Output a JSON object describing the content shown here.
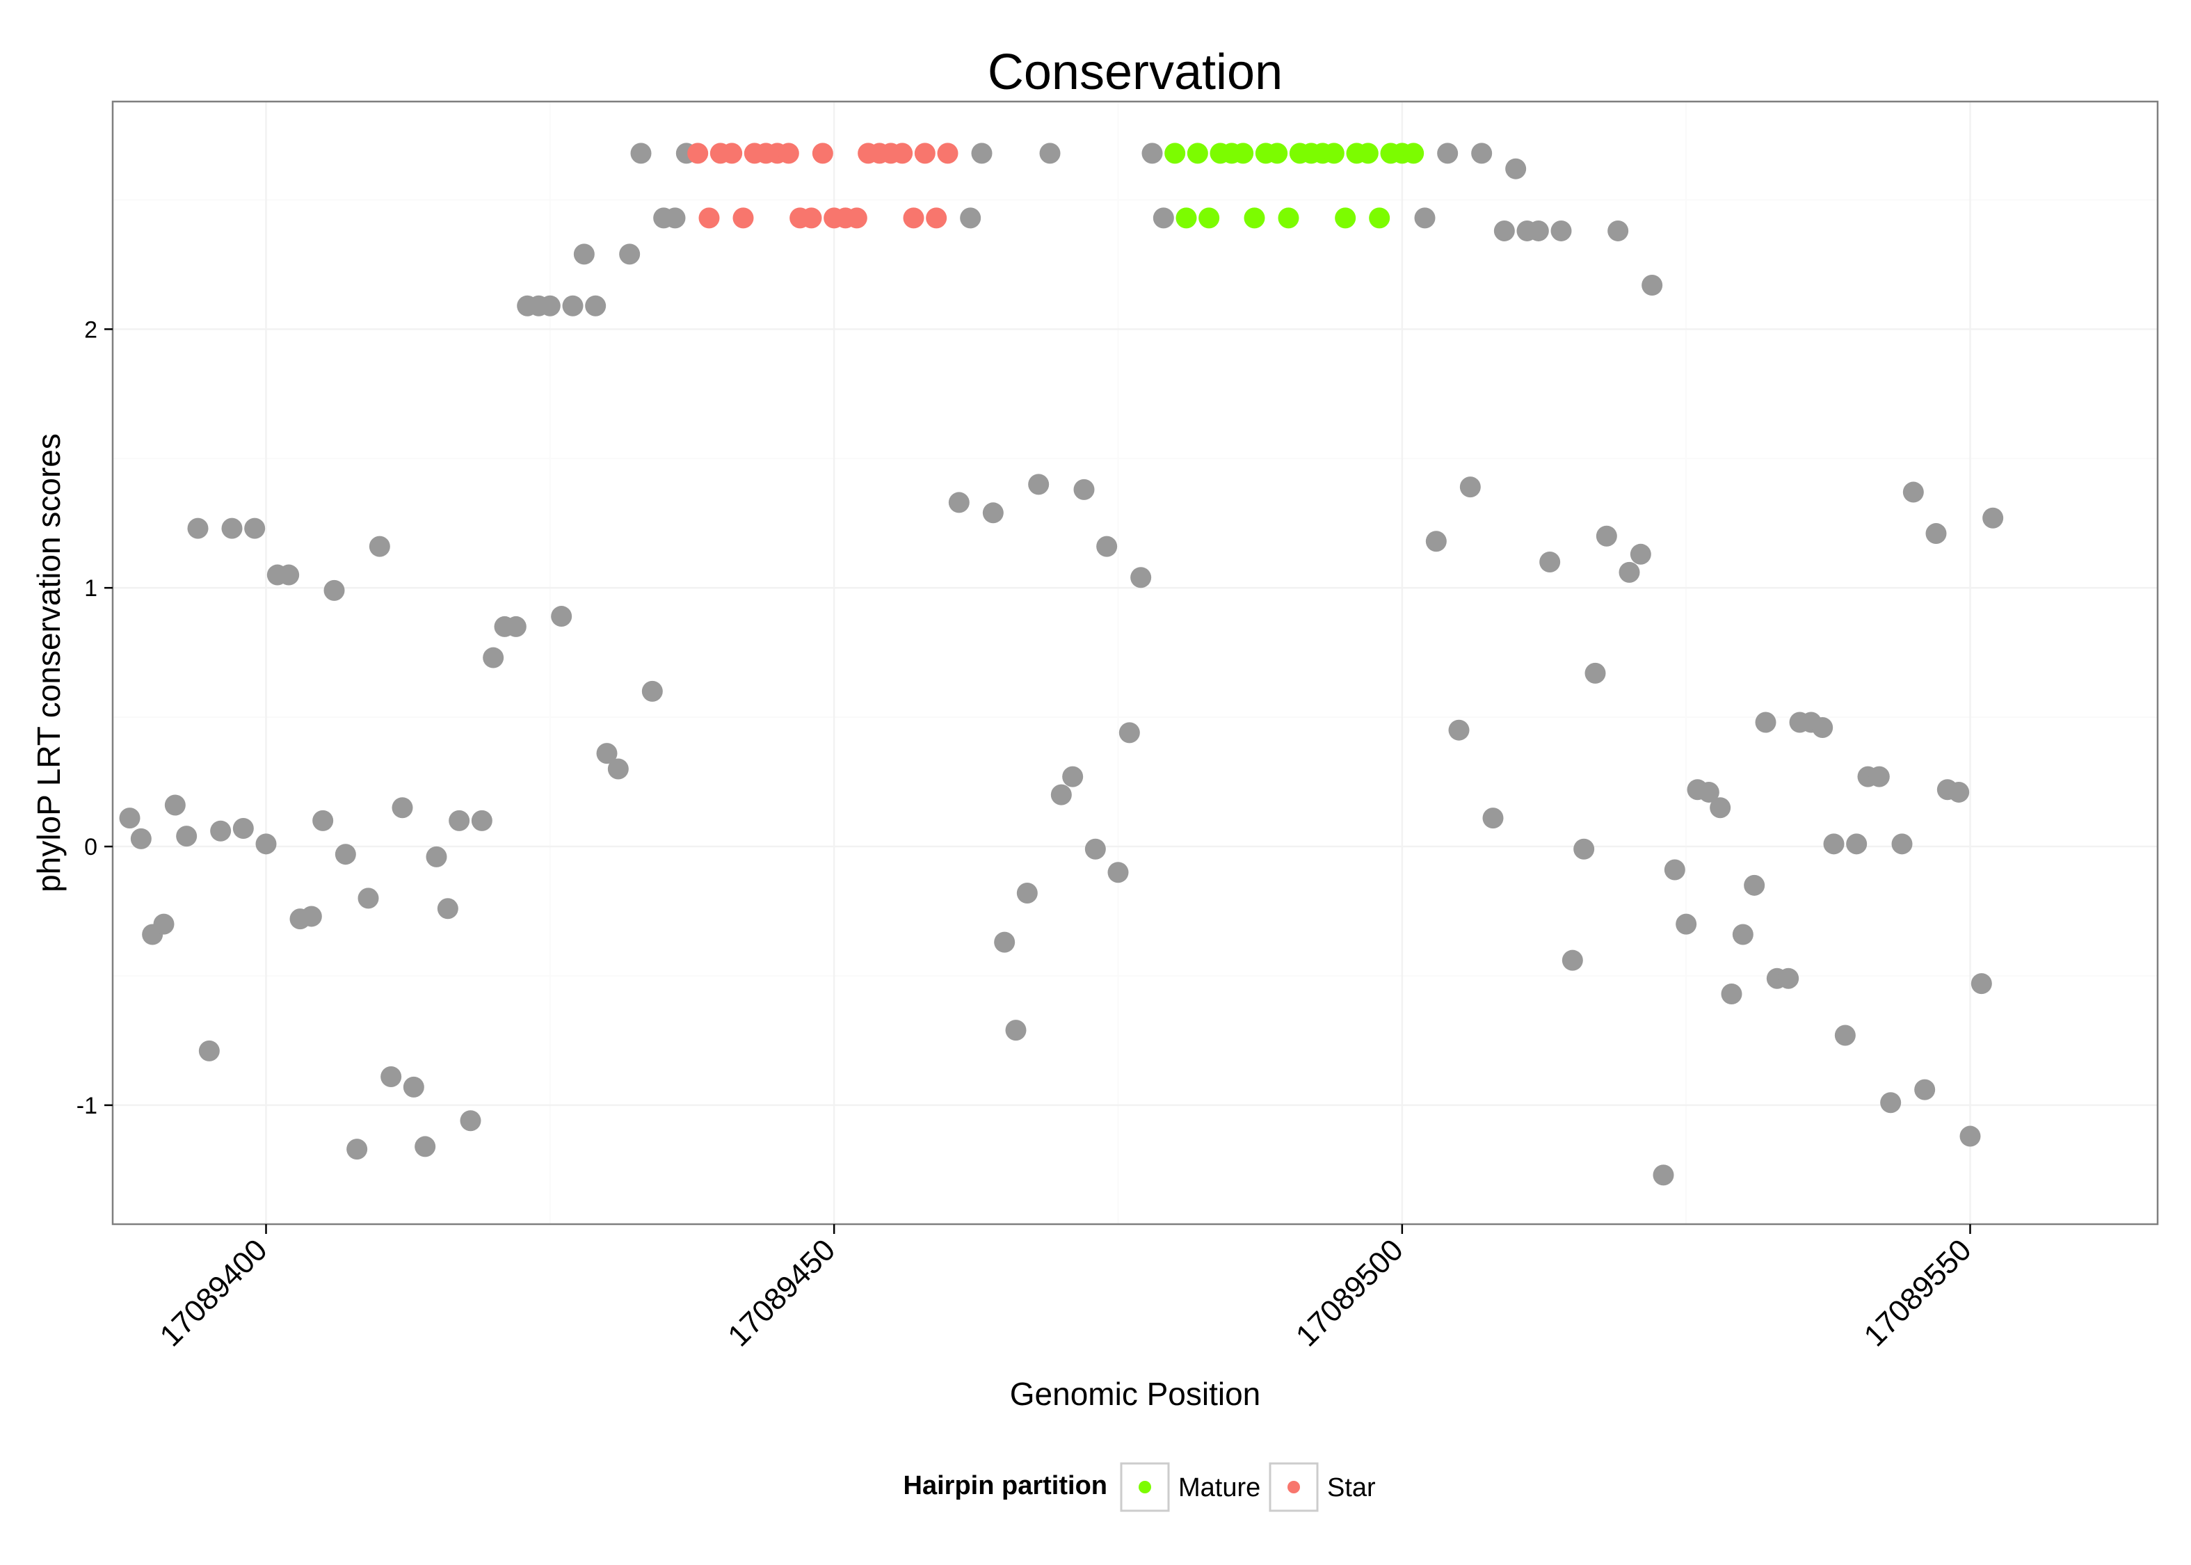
{
  "chart_data": {
    "type": "scatter",
    "title": "Conservation",
    "xlabel": "Genomic Position",
    "ylabel": "phyloP LRT conservation scores",
    "xlim": [
      17089386.5,
      17089566.5
    ],
    "ylim": [
      -1.46,
      2.88
    ],
    "x_ticks": [
      17089400,
      17089450,
      17089500,
      17089550
    ],
    "x_tick_labels": [
      "17089400",
      "17089450",
      "17089500",
      "17089550"
    ],
    "y_ticks": [
      -1,
      0,
      1,
      2
    ],
    "y_tick_labels": [
      "-1",
      "0",
      "1",
      "2"
    ],
    "grid": true,
    "legend": {
      "title": "Hairpin partition",
      "position": "bottom",
      "entries": [
        {
          "label": "Mature",
          "color": "#7CFC00"
        },
        {
          "label": "Star",
          "color": "#F8766D"
        }
      ]
    },
    "colors": {
      "other": "#999999",
      "Mature": "#7CFC00",
      "Star": "#F8766D"
    },
    "series": [
      {
        "name": "Other",
        "points": [
          [
            17089388,
            0.11
          ],
          [
            17089389,
            0.03
          ],
          [
            17089390,
            -0.34
          ],
          [
            17089391,
            -0.3
          ],
          [
            17089392,
            0.16
          ],
          [
            17089393,
            0.04
          ],
          [
            17089394,
            1.23
          ],
          [
            17089395,
            -0.79
          ],
          [
            17089396,
            0.06
          ],
          [
            17089397,
            1.23
          ],
          [
            17089398,
            0.07
          ],
          [
            17089399,
            1.23
          ],
          [
            17089400,
            0.01
          ],
          [
            17089401,
            1.05
          ],
          [
            17089402,
            1.05
          ],
          [
            17089403,
            -0.28
          ],
          [
            17089404,
            -0.27
          ],
          [
            17089405,
            0.1
          ],
          [
            17089406,
            0.99
          ],
          [
            17089407,
            -0.03
          ],
          [
            17089408,
            -1.17
          ],
          [
            17089409,
            -0.2
          ],
          [
            17089410,
            1.16
          ],
          [
            17089411,
            -0.89
          ],
          [
            17089412,
            0.15
          ],
          [
            17089413,
            -0.93
          ],
          [
            17089414,
            -1.16
          ],
          [
            17089415,
            -0.04
          ],
          [
            17089416,
            -0.24
          ],
          [
            17089417,
            0.1
          ],
          [
            17089418,
            -1.06
          ],
          [
            17089419,
            0.1
          ],
          [
            17089420,
            0.73
          ],
          [
            17089421,
            0.85
          ],
          [
            17089422,
            0.85
          ],
          [
            17089423,
            2.09
          ],
          [
            17089424,
            2.09
          ],
          [
            17089425,
            2.09
          ],
          [
            17089426,
            0.89
          ],
          [
            17089427,
            2.09
          ],
          [
            17089428,
            2.29
          ],
          [
            17089429,
            2.09
          ],
          [
            17089430,
            0.36
          ],
          [
            17089431,
            0.3
          ],
          [
            17089432,
            2.29
          ],
          [
            17089433,
            2.68
          ],
          [
            17089434,
            0.6
          ],
          [
            17089435,
            2.43
          ],
          [
            17089436,
            2.43
          ],
          [
            17089437,
            2.68
          ],
          [
            17089461,
            1.33
          ],
          [
            17089462,
            2.43
          ],
          [
            17089463,
            2.68
          ],
          [
            17089464,
            1.29
          ],
          [
            17089465,
            -0.37
          ],
          [
            17089466,
            -0.71
          ],
          [
            17089467,
            -0.18
          ],
          [
            17089468,
            1.4
          ],
          [
            17089469,
            2.68
          ],
          [
            17089470,
            0.2
          ],
          [
            17089471,
            0.27
          ],
          [
            17089472,
            1.38
          ],
          [
            17089473,
            -0.01
          ],
          [
            17089474,
            1.16
          ],
          [
            17089475,
            -0.1
          ],
          [
            17089476,
            0.44
          ],
          [
            17089477,
            1.04
          ],
          [
            17089478,
            2.68
          ],
          [
            17089479,
            2.43
          ],
          [
            17089502,
            2.43
          ],
          [
            17089503,
            1.18
          ],
          [
            17089504,
            2.68
          ],
          [
            17089505,
            0.45
          ],
          [
            17089506,
            1.39
          ],
          [
            17089507,
            2.68
          ],
          [
            17089508,
            0.11
          ],
          [
            17089509,
            2.38
          ],
          [
            17089510,
            2.62
          ],
          [
            17089511,
            2.38
          ],
          [
            17089512,
            2.38
          ],
          [
            17089513,
            1.1
          ],
          [
            17089514,
            2.38
          ],
          [
            17089515,
            -0.44
          ],
          [
            17089516,
            -0.01
          ],
          [
            17089517,
            0.67
          ],
          [
            17089518,
            1.2
          ],
          [
            17089519,
            2.38
          ],
          [
            17089520,
            1.06
          ],
          [
            17089521,
            1.13
          ],
          [
            17089522,
            2.17
          ],
          [
            17089523,
            -1.27
          ],
          [
            17089524,
            -0.09
          ],
          [
            17089525,
            -0.3
          ],
          [
            17089526,
            0.22
          ],
          [
            17089527,
            0.21
          ],
          [
            17089528,
            0.15
          ],
          [
            17089529,
            -0.57
          ],
          [
            17089530,
            -0.34
          ],
          [
            17089531,
            -0.15
          ],
          [
            17089532,
            0.48
          ],
          [
            17089533,
            -0.51
          ],
          [
            17089534,
            -0.51
          ],
          [
            17089535,
            0.48
          ],
          [
            17089536,
            0.48
          ],
          [
            17089537,
            0.46
          ],
          [
            17089538,
            0.01
          ],
          [
            17089539,
            -0.73
          ],
          [
            17089540,
            0.01
          ],
          [
            17089541,
            0.27
          ],
          [
            17089542,
            0.27
          ],
          [
            17089543,
            -0.99
          ],
          [
            17089544,
            0.01
          ],
          [
            17089545,
            1.37
          ],
          [
            17089546,
            -0.94
          ],
          [
            17089547,
            1.21
          ],
          [
            17089548,
            0.22
          ],
          [
            17089549,
            0.21
          ],
          [
            17089550,
            -1.12
          ],
          [
            17089551,
            -0.53
          ],
          [
            17089552,
            1.27
          ]
        ]
      },
      {
        "name": "Star",
        "points": [
          [
            17089438,
            2.68
          ],
          [
            17089439,
            2.43
          ],
          [
            17089440,
            2.68
          ],
          [
            17089441,
            2.68
          ],
          [
            17089442,
            2.43
          ],
          [
            17089443,
            2.68
          ],
          [
            17089444,
            2.68
          ],
          [
            17089445,
            2.68
          ],
          [
            17089446,
            2.68
          ],
          [
            17089447,
            2.43
          ],
          [
            17089448,
            2.43
          ],
          [
            17089449,
            2.68
          ],
          [
            17089450,
            2.43
          ],
          [
            17089451,
            2.43
          ],
          [
            17089452,
            2.43
          ],
          [
            17089453,
            2.68
          ],
          [
            17089454,
            2.68
          ],
          [
            17089455,
            2.68
          ],
          [
            17089456,
            2.68
          ],
          [
            17089457,
            2.43
          ],
          [
            17089458,
            2.68
          ],
          [
            17089459,
            2.43
          ],
          [
            17089460,
            2.68
          ]
        ]
      },
      {
        "name": "Mature",
        "points": [
          [
            17089480,
            2.68
          ],
          [
            17089481,
            2.43
          ],
          [
            17089482,
            2.68
          ],
          [
            17089483,
            2.43
          ],
          [
            17089484,
            2.68
          ],
          [
            17089485,
            2.68
          ],
          [
            17089486,
            2.68
          ],
          [
            17089487,
            2.43
          ],
          [
            17089488,
            2.68
          ],
          [
            17089489,
            2.68
          ],
          [
            17089490,
            2.43
          ],
          [
            17089491,
            2.68
          ],
          [
            17089492,
            2.68
          ],
          [
            17089493,
            2.68
          ],
          [
            17089494,
            2.68
          ],
          [
            17089495,
            2.43
          ],
          [
            17089496,
            2.68
          ],
          [
            17089497,
            2.68
          ],
          [
            17089498,
            2.43
          ],
          [
            17089499,
            2.68
          ],
          [
            17089500,
            2.68
          ],
          [
            17089501,
            2.68
          ]
        ]
      }
    ]
  }
}
